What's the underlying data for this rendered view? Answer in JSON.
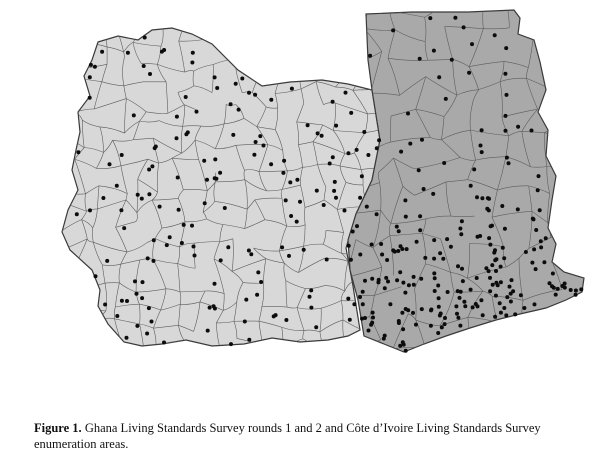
{
  "caption": {
    "label": "Figure 1.",
    "text": "Ghana Living Standards Survey rounds 1 and 2 and Côte d’Ivoire Living Standards Survey enumeration areas."
  },
  "colors": {
    "ghana_fill": "#a9a9a9",
    "cote_divoire_fill": "#d8d8d8",
    "border": "#3a3a3a",
    "district_line": "#5c5c5c",
    "point": "#0c0c0c"
  }
}
